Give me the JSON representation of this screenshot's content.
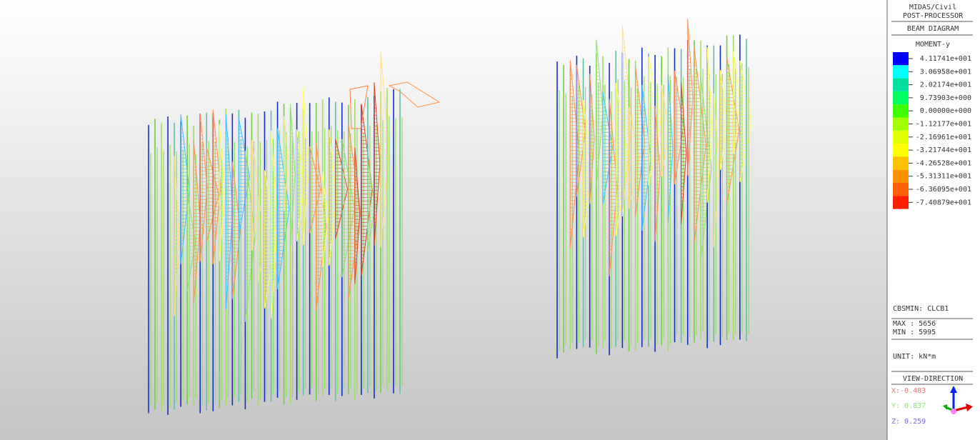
{
  "header": {
    "app": "MIDAS/Civil",
    "mode": "POST-PROCESSOR",
    "diagram": "BEAM DIAGRAM",
    "component": "MOMENT-y"
  },
  "legend": {
    "labels": [
      "4.11741e+001",
      "3.06958e+001",
      "2.02174e+001",
      "9.73903e+000",
      "0.00000e+000",
      "-1.12177e+001",
      "-2.16961e+001",
      "-3.21744e+001",
      "-4.26528e+001",
      "-5.31311e+001",
      "-6.36095e+001",
      "-7.40879e+001"
    ],
    "colors": [
      "#0000ff",
      "#00ffff",
      "#00e0a0",
      "#00ff60",
      "#40ff00",
      "#a0ff00",
      "#e0ff00",
      "#ffff00",
      "#ffc000",
      "#ff9000",
      "#ff6000",
      "#ff2000"
    ]
  },
  "info": {
    "load_case": "CBSMIN: CLCB1",
    "max": "MAX : 5656",
    "min": "MIN : 5995",
    "unit": "UNIT: kN*m"
  },
  "view": {
    "title": "VIEW-DIRECTION",
    "x": "X:-0.483",
    "y": "Y: 0.837",
    "z": "Z: 0.259"
  }
}
